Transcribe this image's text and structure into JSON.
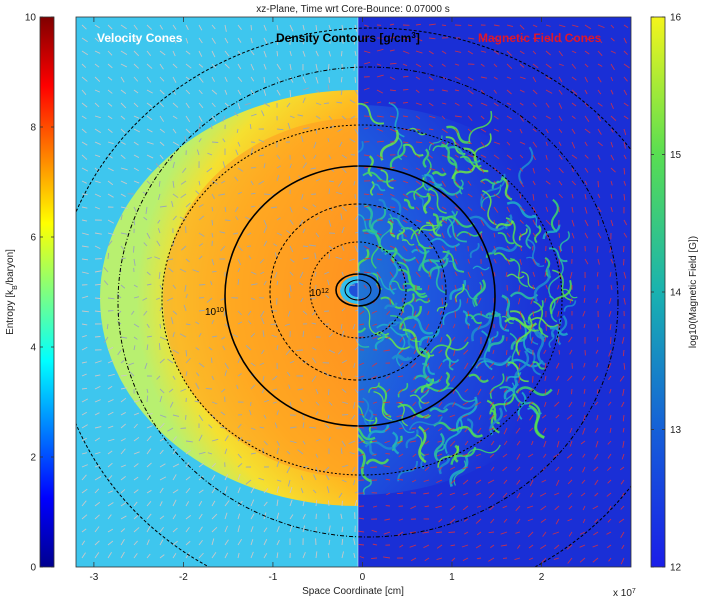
{
  "chart_data": {
    "type": "heatmap",
    "title": "xz-Plane, Time wrt Core-Bounce: 0.07000 s",
    "xlabel": "Space Coordinate [cm]",
    "x_exponent_label": "x 10",
    "x_exponent_power": "7",
    "xlim": [
      -3.2,
      3.0
    ],
    "x_ticks": [
      -3,
      -2,
      -1,
      0,
      1,
      2
    ],
    "x_tick_labels": [
      "-3",
      "-2",
      "-1",
      "0",
      "1",
      "2"
    ],
    "grid": false,
    "panels": {
      "left_label": "Velocity Cones",
      "center_label": "Density Contours [g/cm",
      "center_label_sup": "3",
      "center_label_end": "]",
      "right_label": "Magnetic Field Cones"
    },
    "contour_labels": [
      {
        "base": "10",
        "exp": "10"
      },
      {
        "base": "10",
        "exp": "12"
      }
    ],
    "colorbar_left": {
      "label": "Entropy [k",
      "label_sub": "B",
      "label_end": "/baryon]",
      "range": [
        0,
        10
      ],
      "ticks": [
        0,
        2,
        4,
        6,
        8,
        10
      ],
      "tick_labels": [
        "0",
        "2",
        "4",
        "6",
        "8",
        "10"
      ],
      "colormap": "jet"
    },
    "colorbar_right": {
      "label": "log10(Magnetic Field [G])",
      "range": [
        12,
        16
      ],
      "ticks": [
        12,
        13,
        14,
        15,
        16
      ],
      "tick_labels": [
        "12",
        "13",
        "14",
        "15",
        "16"
      ],
      "colormap": "jet"
    },
    "colors": {
      "velocity_label": "#ffffff",
      "density_label": "#000000",
      "magnetic_label": "#e0162b",
      "velocity_cones": "#c8c8c8",
      "magnetic_cones": "#e0303a",
      "contours": "#000000",
      "background_entropy": "#3ec6ee",
      "background_field": "#1a2fd6"
    }
  }
}
